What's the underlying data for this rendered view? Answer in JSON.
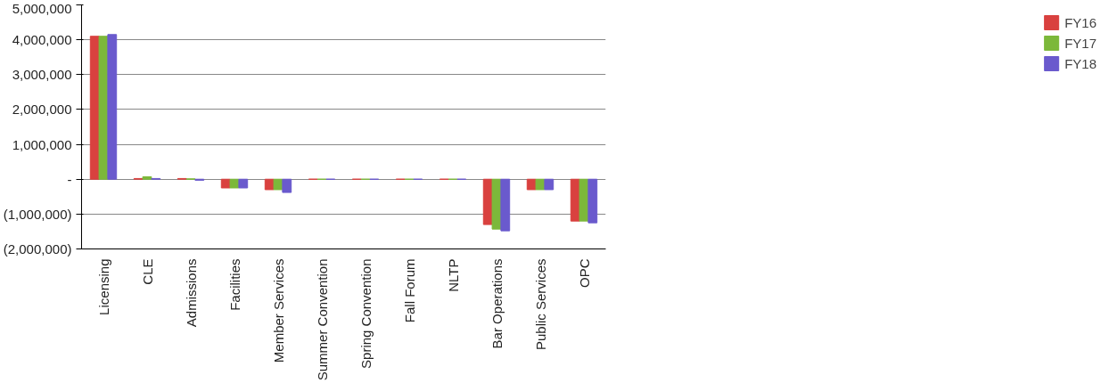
{
  "chart_data": {
    "type": "bar",
    "categories": [
      "Licensing",
      "CLE",
      "Admissions",
      "Facilities",
      "Member Services",
      "Summer Convention",
      "Spring Convention",
      "Fall Forum",
      "NLTP",
      "Bar Operations",
      "Public Services",
      "OPC"
    ],
    "series": [
      {
        "name": "FY16",
        "color": "#d9413f",
        "values": [
          4100000,
          20000,
          20000,
          -250000,
          -300000,
          0,
          0,
          0,
          0,
          -1300000,
          -300000,
          -1200000
        ]
      },
      {
        "name": "FY17",
        "color": "#7cb83a",
        "values": [
          4100000,
          70000,
          10000,
          -250000,
          -300000,
          0,
          0,
          0,
          0,
          -1430000,
          -300000,
          -1200000
        ]
      },
      {
        "name": "FY18",
        "color": "#6a5acd",
        "values": [
          4150000,
          20000,
          -30000,
          -250000,
          -380000,
          0,
          0,
          0,
          0,
          -1480000,
          -300000,
          -1250000
        ]
      }
    ],
    "ylim": [
      -2000000,
      5000000
    ],
    "yticks": [
      {
        "value": -2000000,
        "label": "(2,000,000)"
      },
      {
        "value": -1000000,
        "label": "(1,000,000)"
      },
      {
        "value": 0,
        "label": "-"
      },
      {
        "value": 1000000,
        "label": "1,000,000"
      },
      {
        "value": 2000000,
        "label": "2,000,000"
      },
      {
        "value": 3000000,
        "label": "3,000,000"
      },
      {
        "value": 4000000,
        "label": "4,000,000"
      },
      {
        "value": 5000000,
        "label": "5,000,000"
      }
    ],
    "grid": "y",
    "legend": "right"
  }
}
